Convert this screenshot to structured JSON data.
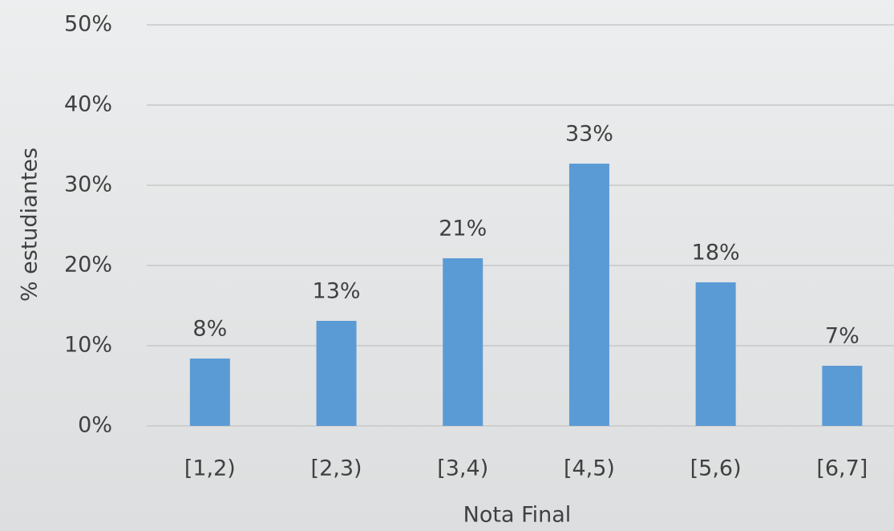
{
  "chart_data": {
    "type": "bar",
    "x_label": "Nota Final",
    "y_label": "% estudiantes",
    "categories": [
      "[1,2)",
      "[2,3)",
      "[3,4)",
      "[4,5)",
      "[5,6)",
      "[6,7]"
    ],
    "values": [
      8.4,
      13.1,
      20.9,
      32.7,
      17.9,
      7.5
    ],
    "value_labels": [
      "8%",
      "13%",
      "21%",
      "33%",
      "18%",
      "7%"
    ],
    "color": "#5b9bd5",
    "ylim": [
      0,
      50
    ],
    "yticks": [
      {
        "value": 0,
        "label": "0%"
      },
      {
        "value": 10,
        "label": "10%"
      },
      {
        "value": 20,
        "label": "20%"
      },
      {
        "value": 30,
        "label": "30%"
      },
      {
        "value": 40,
        "label": "40%"
      },
      {
        "value": 50,
        "label": "50%"
      }
    ],
    "grid": true
  }
}
